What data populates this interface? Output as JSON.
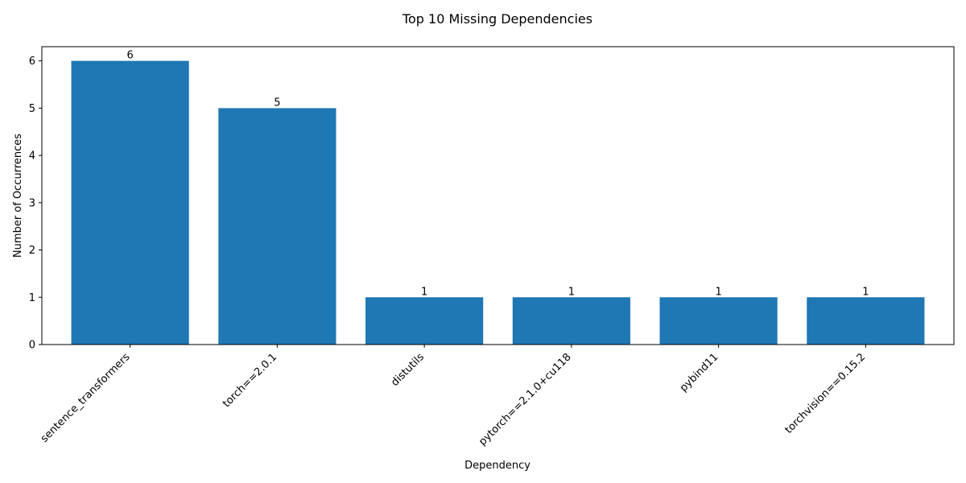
{
  "chart_data": {
    "type": "bar",
    "title": "Top 10 Missing Dependencies",
    "xlabel": "Dependency",
    "ylabel": "Number of Occurrences",
    "categories": [
      "sentence_transformers",
      "torch==2.0.1",
      "distutils",
      "pytorch==2.1.0+cu118",
      "pybind11",
      "torchvision==0.15.2"
    ],
    "values": [
      6,
      5,
      1,
      1,
      1,
      1
    ],
    "ylim": [
      0,
      6.3
    ],
    "yticks": [
      0,
      1,
      2,
      3,
      4,
      5,
      6
    ],
    "bar_color": "#1f77b4",
    "grid": false,
    "show_value_labels": true
  }
}
